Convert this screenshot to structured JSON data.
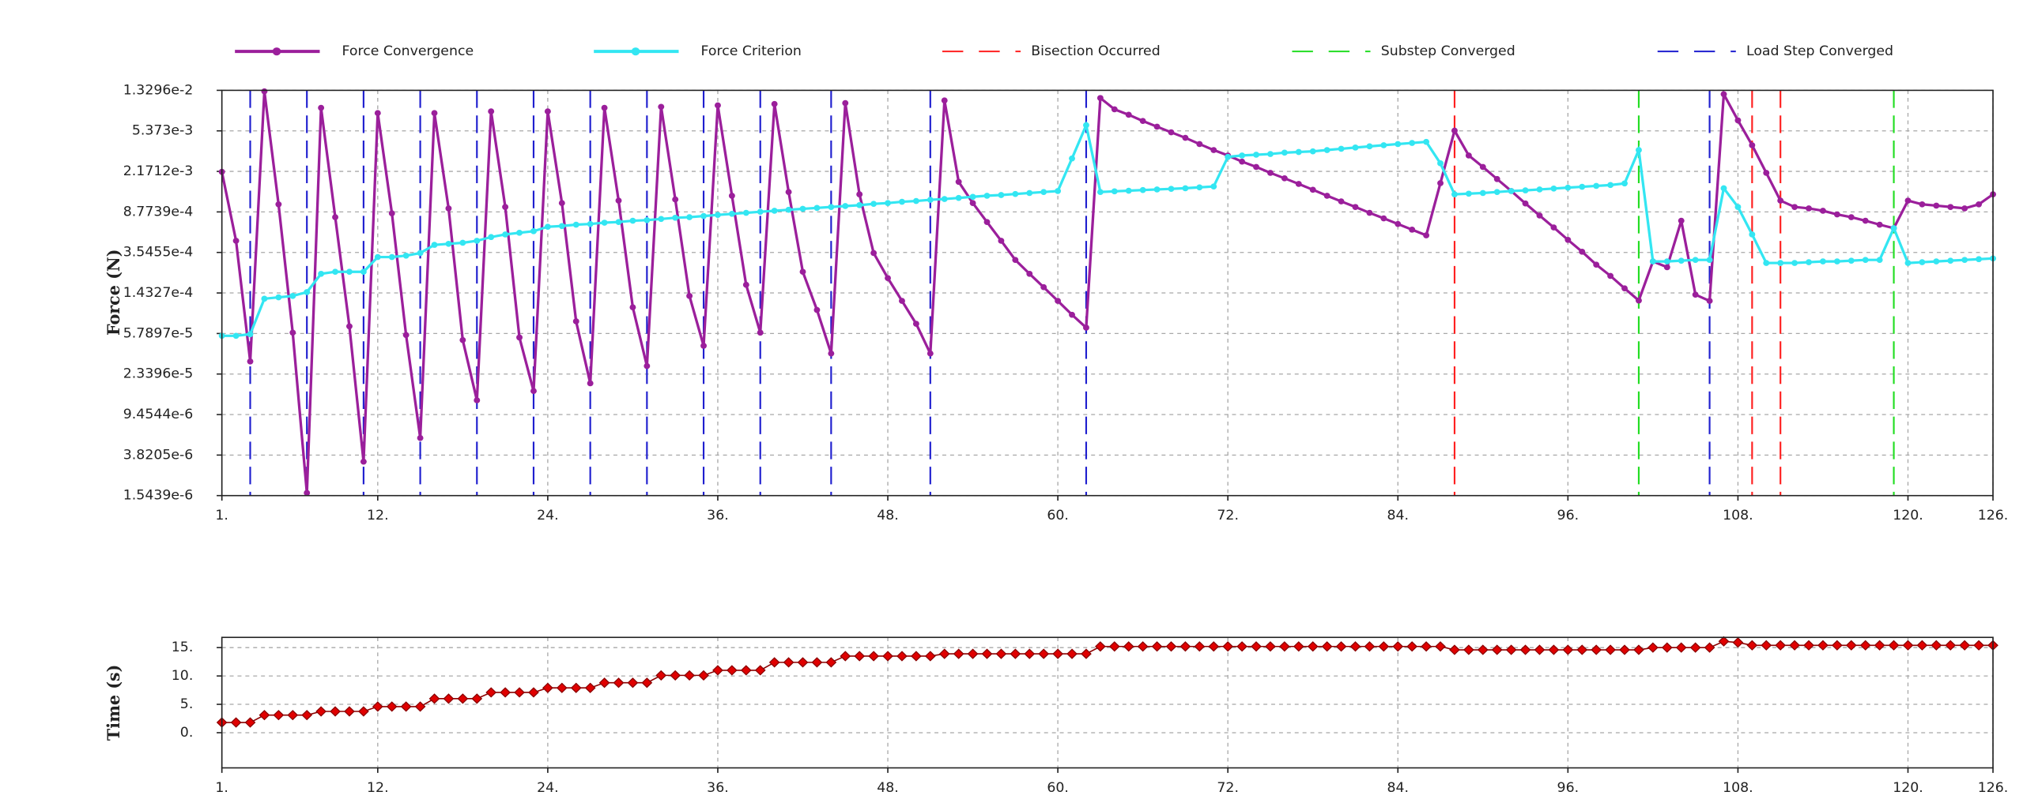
{
  "chart_data": [
    {
      "type": "line",
      "y_label": "Force (N)",
      "log_y": true,
      "grid": true,
      "legend": "top",
      "x": [
        1,
        2,
        3,
        4,
        5,
        6,
        7,
        8,
        9,
        10,
        11,
        12,
        13,
        14,
        15,
        16,
        17,
        18,
        19,
        20,
        21,
        22,
        23,
        24,
        25,
        26,
        27,
        28,
        29,
        30,
        31,
        32,
        33,
        34,
        35,
        36,
        37,
        38,
        39,
        40,
        41,
        42,
        43,
        44,
        45,
        46,
        47,
        48,
        49,
        50,
        51,
        52,
        53,
        54,
        55,
        56,
        57,
        58,
        59,
        60,
        61,
        62,
        63,
        64,
        65,
        66,
        67,
        68,
        69,
        70,
        71,
        72,
        73,
        74,
        75,
        76,
        77,
        78,
        79,
        80,
        81,
        82,
        83,
        84,
        85,
        86,
        87,
        88,
        89,
        90,
        91,
        92,
        93,
        94,
        95,
        96,
        97,
        98,
        99,
        100,
        101,
        102,
        103,
        104,
        105,
        106,
        107,
        108,
        109,
        110,
        111,
        112,
        113,
        114,
        115,
        116,
        117,
        118,
        119,
        120,
        121,
        122,
        123,
        124,
        125,
        126
      ],
      "series": [
        {
          "name": "Force Convergence",
          "color": "#9b1f9b",
          "marker": "circle",
          "values": [
            0.00215,
            0.00046,
            3.1e-05,
            0.013,
            0.00104,
            5.9e-05,
            1.64e-06,
            0.009,
            0.00078,
            6.8e-05,
            3.3e-06,
            0.008,
            0.00085,
            5.6e-05,
            5.6e-06,
            0.008,
            0.00095,
            5e-05,
            1.3e-05,
            0.0083,
            0.00098,
            5.3e-05,
            1.6e-05,
            0.0083,
            0.00107,
            7.6e-05,
            1.9e-05,
            0.009,
            0.00113,
            0.000104,
            2.8e-05,
            0.0092,
            0.00116,
            0.000134,
            4.4e-05,
            0.0095,
            0.00126,
            0.000172,
            5.9e-05,
            0.0098,
            0.00137,
            0.00023,
            9.8e-05,
            3.7e-05,
            0.01,
            0.0013,
            0.00035,
            0.0002,
            0.00012,
            7.2e-05,
            3.7e-05,
            0.0106,
            0.00172,
            0.00107,
            0.0007,
            0.00046,
            0.0003,
            0.00022,
            0.000163,
            0.00012,
            8.8e-05,
            6.6e-05,
            0.0112,
            0.0087,
            0.0077,
            0.0067,
            0.0059,
            0.0052,
            0.0046,
            0.004,
            0.0035,
            0.0031,
            0.0027,
            0.0024,
            0.0021,
            0.00186,
            0.00164,
            0.00144,
            0.00126,
            0.00111,
            0.00098,
            0.00086,
            0.00076,
            0.00067,
            0.00059,
            0.00052,
            0.00167,
            0.0054,
            0.0031,
            0.0024,
            0.00183,
            0.0014,
            0.00106,
            0.00081,
            0.00062,
            0.00047,
            0.00036,
            0.00027,
            0.00021,
            0.000159,
            0.000121,
            0.00029,
            0.000255,
            0.00072,
            0.000138,
            0.00012,
            0.0122,
            0.0068,
            0.0039,
            0.0021,
            0.00113,
            0.00098,
            0.00095,
            0.0009,
            0.00083,
            0.00078,
            0.00072,
            0.00066,
            0.00061,
            0.00113,
            0.00104,
            0.00101,
            0.00098,
            0.00095,
            0.00104,
            0.0013
          ]
        },
        {
          "name": "Force Criterion",
          "color": "#33e6f2",
          "marker": "circle",
          "values": [
            5.5e-05,
            5.5e-05,
            5.7e-05,
            0.000126,
            0.00013,
            0.000134,
            0.000146,
            0.00022,
            0.00023,
            0.00023,
            0.00023,
            0.00032,
            0.00032,
            0.00033,
            0.00035,
            0.00042,
            0.00043,
            0.00044,
            0.00046,
            0.0005,
            0.00053,
            0.00055,
            0.00057,
            0.00063,
            0.00064,
            0.00066,
            0.00067,
            0.00069,
            0.0007,
            0.00072,
            0.00073,
            0.00075,
            0.00077,
            0.00078,
            0.0008,
            0.00082,
            0.00084,
            0.00086,
            0.00088,
            0.0009,
            0.00092,
            0.00094,
            0.00096,
            0.00098,
            0.001,
            0.00102,
            0.00105,
            0.00107,
            0.0011,
            0.00112,
            0.00115,
            0.00117,
            0.0012,
            0.00123,
            0.00126,
            0.00128,
            0.00131,
            0.00134,
            0.00137,
            0.0014,
            0.0029,
            0.0061,
            0.00137,
            0.00139,
            0.00141,
            0.00143,
            0.00145,
            0.00147,
            0.00149,
            0.00152,
            0.00155,
            0.003,
            0.0031,
            0.00315,
            0.0032,
            0.0033,
            0.00335,
            0.0034,
            0.0035,
            0.0036,
            0.0037,
            0.0038,
            0.0039,
            0.004,
            0.0041,
            0.0042,
            0.0026,
            0.0013,
            0.00132,
            0.00134,
            0.00137,
            0.0014,
            0.00142,
            0.00145,
            0.00148,
            0.00151,
            0.00154,
            0.00157,
            0.0016,
            0.00166,
            0.0035,
            0.00029,
            0.00029,
            0.000295,
            0.0003,
            0.0003,
            0.00149,
            0.00098,
            0.00053,
            0.00028,
            0.00028,
            0.00028,
            0.000285,
            0.00029,
            0.00029,
            0.000295,
            0.0003,
            0.0003,
            0.00061,
            0.00028,
            0.000285,
            0.00029,
            0.000295,
            0.0003,
            0.000305,
            0.00031
          ]
        }
      ],
      "vlines": [
        {
          "name": "Bisection Occurred",
          "color": "#ff2020",
          "x": [
            88,
            109,
            111
          ]
        },
        {
          "name": "Substep Converged",
          "color": "#22dd22",
          "x": [
            101,
            119
          ]
        },
        {
          "name": "Load Step Converged",
          "color": "#1f1fcf",
          "x": [
            3,
            7,
            11,
            15,
            19,
            23,
            27,
            31,
            35,
            39,
            44,
            51,
            62,
            106
          ]
        }
      ],
      "xlim": [
        1,
        126
      ],
      "xticks": [
        {
          "value": 1,
          "label": "1."
        },
        {
          "value": 12,
          "label": "12."
        },
        {
          "value": 24,
          "label": "24."
        },
        {
          "value": 36,
          "label": "36."
        },
        {
          "value": 48,
          "label": "48."
        },
        {
          "value": 60,
          "label": "60."
        },
        {
          "value": 72,
          "label": "72."
        },
        {
          "value": 84,
          "label": "84."
        },
        {
          "value": 96,
          "label": "96."
        },
        {
          "value": 108,
          "label": "108."
        },
        {
          "value": 120,
          "label": "120."
        },
        {
          "value": 126,
          "label": "126."
        }
      ],
      "ylim": [
        1.5439e-06,
        0.013296
      ],
      "yticks": [
        {
          "value": 0.013296,
          "label": "1.3296e-2"
        },
        {
          "value": 0.005373,
          "label": "5.373e-3"
        },
        {
          "value": 0.0021712,
          "label": "2.1712e-3"
        },
        {
          "value": 0.00087739,
          "label": "8.7739e-4"
        },
        {
          "value": 0.00035455,
          "label": "3.5455e-4"
        },
        {
          "value": 0.00014327,
          "label": "1.4327e-4"
        },
        {
          "value": 5.7897e-05,
          "label": "5.7897e-5"
        },
        {
          "value": 2.3396e-05,
          "label": "2.3396e-5"
        },
        {
          "value": 9.4544e-06,
          "label": "9.4544e-6"
        },
        {
          "value": 3.8205e-06,
          "label": "3.8205e-6"
        },
        {
          "value": 1.5439e-06,
          "label": "1.5439e-6"
        }
      ]
    },
    {
      "type": "line",
      "y_label": "Time (s)",
      "log_y": false,
      "grid": true,
      "x": [
        1,
        2,
        3,
        4,
        5,
        6,
        7,
        8,
        9,
        10,
        11,
        12,
        13,
        14,
        15,
        16,
        17,
        18,
        19,
        20,
        21,
        22,
        23,
        24,
        25,
        26,
        27,
        28,
        29,
        30,
        31,
        32,
        33,
        34,
        35,
        36,
        37,
        38,
        39,
        40,
        41,
        42,
        43,
        44,
        45,
        46,
        47,
        48,
        49,
        50,
        51,
        52,
        53,
        54,
        55,
        56,
        57,
        58,
        59,
        60,
        61,
        62,
        63,
        64,
        65,
        66,
        67,
        68,
        69,
        70,
        71,
        72,
        73,
        74,
        75,
        76,
        77,
        78,
        79,
        80,
        81,
        82,
        83,
        84,
        85,
        86,
        87,
        88,
        89,
        90,
        91,
        92,
        93,
        94,
        95,
        96,
        97,
        98,
        99,
        100,
        101,
        102,
        103,
        104,
        105,
        106,
        107,
        108,
        109,
        110,
        111,
        112,
        113,
        114,
        115,
        116,
        117,
        118,
        119,
        120,
        121,
        122,
        123,
        124,
        125,
        126
      ],
      "series": [
        {
          "color": "#e00000",
          "line_color": "#8b0000",
          "marker": "diamond",
          "values": [
            1.8,
            1.8,
            1.8,
            3.1,
            3.1,
            3.1,
            3.1,
            3.75,
            3.75,
            3.75,
            3.75,
            4.6,
            4.6,
            4.6,
            4.6,
            6.0,
            6.0,
            6.0,
            6.0,
            7.1,
            7.1,
            7.1,
            7.1,
            7.9,
            7.9,
            7.9,
            7.9,
            8.8,
            8.8,
            8.8,
            8.8,
            10.1,
            10.1,
            10.1,
            10.1,
            11.0,
            11.0,
            11.0,
            11.0,
            12.4,
            12.4,
            12.4,
            12.4,
            12.4,
            13.5,
            13.5,
            13.5,
            13.5,
            13.5,
            13.5,
            13.5,
            13.9,
            13.9,
            13.9,
            13.9,
            13.9,
            13.9,
            13.9,
            13.9,
            13.9,
            13.9,
            13.9,
            15.2,
            15.2,
            15.2,
            15.2,
            15.2,
            15.2,
            15.2,
            15.2,
            15.2,
            15.2,
            15.2,
            15.2,
            15.2,
            15.2,
            15.2,
            15.2,
            15.2,
            15.2,
            15.2,
            15.2,
            15.2,
            15.2,
            15.2,
            15.2,
            15.2,
            14.6,
            14.6,
            14.6,
            14.6,
            14.6,
            14.6,
            14.6,
            14.6,
            14.6,
            14.6,
            14.6,
            14.6,
            14.6,
            14.6,
            15.0,
            15.0,
            15.0,
            15.0,
            15.0,
            16.1,
            15.9,
            15.4,
            15.4,
            15.4,
            15.4,
            15.4,
            15.4,
            15.4,
            15.4,
            15.4,
            15.4,
            15.4,
            15.4,
            15.4,
            15.4,
            15.4,
            15.4,
            15.4,
            15.4
          ]
        }
      ],
      "xlim": [
        1,
        126
      ],
      "xticks": [
        {
          "value": 1,
          "label": "1."
        },
        {
          "value": 12,
          "label": "12."
        },
        {
          "value": 24,
          "label": "24."
        },
        {
          "value": 36,
          "label": "36."
        },
        {
          "value": 48,
          "label": "48."
        },
        {
          "value": 60,
          "label": "60."
        },
        {
          "value": 72,
          "label": "72."
        },
        {
          "value": 84,
          "label": "84."
        },
        {
          "value": 96,
          "label": "96."
        },
        {
          "value": 108,
          "label": "108."
        },
        {
          "value": 120,
          "label": "120."
        },
        {
          "value": 126,
          "label": "126."
        }
      ],
      "ylim": [
        -6.2,
        16.8
      ],
      "yticks": [
        {
          "value": 0,
          "label": "0."
        },
        {
          "value": 5,
          "label": "5."
        },
        {
          "value": 10,
          "label": "10."
        },
        {
          "value": 15,
          "label": "15."
        }
      ]
    }
  ]
}
